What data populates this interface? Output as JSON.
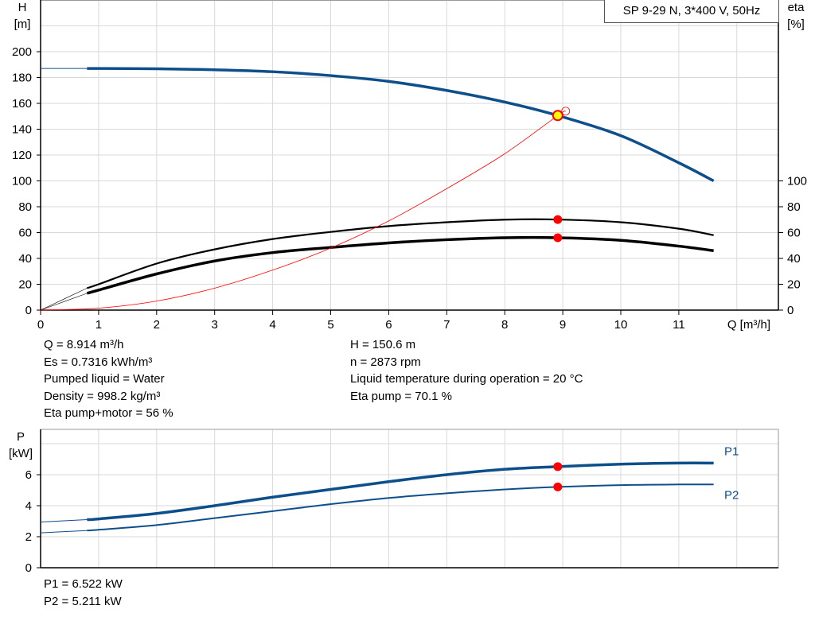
{
  "title": "SP 9-29 N, 3*400 V, 50Hz",
  "colors": {
    "head": "#0d4f8b",
    "eta": "#000000",
    "system": "#ff0000",
    "power": "#0d4f8b",
    "duty_point": "#ff0000",
    "duty_fill": "#ffff00",
    "grid": "#d9d9d9"
  },
  "info_left": [
    "Q = 8.914 m³/h",
    "Es = 0.7316 kWh/m³",
    "Pumped liquid = Water",
    "Density = 998.2 kg/m³",
    "Eta pump+motor = 56 %"
  ],
  "info_right": [
    "H = 150.6 m",
    "n = 2873 rpm",
    "Liquid temperature during operation = 20 °C",
    "Eta pump = 70.1 %"
  ],
  "power_info": [
    "P1 = 6.522 kW",
    "P2 = 5.211 kW"
  ],
  "chart_data": [
    {
      "type": "line",
      "xlabel": "Q [m³/h]",
      "ylabel": "H\n[m]",
      "y2label": "eta\n[%]",
      "ylabel_lines": [
        "H",
        "[m]"
      ],
      "y2label_lines": [
        "eta",
        "[%]"
      ],
      "xlim": [
        0,
        12.7
      ],
      "ylim": [
        0,
        240
      ],
      "y2lim": [
        0,
        240
      ],
      "xticks": [
        0,
        1,
        2,
        3,
        4,
        5,
        6,
        7,
        8,
        9,
        10,
        11
      ],
      "yticks": [
        0,
        20,
        40,
        60,
        80,
        100,
        120,
        140,
        160,
        180,
        200
      ],
      "y2ticks": [
        0,
        20,
        40,
        60,
        80,
        100
      ],
      "grid": true,
      "duty_point": {
        "Q": 8.914,
        "H": 150.6,
        "eta_pump": 70.1,
        "eta_total": 56
      },
      "series": [
        {
          "key": "H",
          "axis": "left",
          "x": [
            0.8,
            2,
            3,
            4,
            5,
            6,
            7,
            8,
            8.914,
            10,
            11,
            11.6
          ],
          "y": [
            187,
            186.8,
            186,
            184.5,
            181.5,
            177,
            170,
            161,
            150.6,
            135,
            114,
            100
          ],
          "extension": {
            "x": [
              0,
              0.8
            ],
            "y": [
              187,
              187
            ]
          }
        },
        {
          "key": "eta_pump",
          "axis": "right",
          "x": [
            0.8,
            1,
            2,
            3,
            4,
            5,
            6,
            7,
            8,
            8.914,
            10,
            11,
            11.6
          ],
          "y": [
            17,
            20,
            36,
            47,
            55,
            60.5,
            65,
            68,
            70,
            70.1,
            68,
            63,
            58
          ],
          "extension": {
            "x": [
              0,
              0.8
            ],
            "y": [
              0,
              17
            ]
          }
        },
        {
          "key": "eta_total",
          "axis": "right",
          "x": [
            0.8,
            1,
            2,
            3,
            4,
            5,
            6,
            7,
            8,
            8.914,
            10,
            11,
            11.6
          ],
          "y": [
            13,
            15.5,
            28,
            38,
            44.5,
            48.5,
            52,
            54.5,
            56,
            56,
            54,
            49.5,
            46
          ],
          "extension": {
            "x": [
              0,
              0.8
            ],
            "y": [
              0,
              13
            ]
          }
        },
        {
          "key": "system",
          "axis": "left",
          "x": [
            0,
            1,
            2,
            3,
            4,
            5,
            6,
            7,
            8,
            8.914,
            9.05
          ],
          "y": [
            0,
            1.5,
            7,
            17,
            31,
            48,
            69,
            94,
            121,
            150.6,
            154
          ]
        }
      ]
    },
    {
      "type": "line",
      "ylabel_lines": [
        "P",
        "[kW]"
      ],
      "xlim": [
        0,
        12.7
      ],
      "ylim": [
        0,
        9.5
      ],
      "yticks": [
        0,
        2,
        4,
        6
      ],
      "grid": true,
      "duty_point": {
        "Q": 8.914,
        "P1": 6.522,
        "P2": 5.211
      },
      "series": [
        {
          "name": "P1",
          "x": [
            0.8,
            1,
            2,
            3,
            4,
            5,
            6,
            7,
            8,
            8.914,
            10,
            11,
            11.6
          ],
          "y": [
            3.1,
            3.15,
            3.5,
            4.0,
            4.55,
            5.05,
            5.55,
            6.0,
            6.35,
            6.522,
            6.68,
            6.75,
            6.75
          ],
          "extension": {
            "x": [
              0,
              0.8
            ],
            "y": [
              2.95,
              3.1
            ]
          }
        },
        {
          "name": "P2",
          "x": [
            0.8,
            1,
            2,
            3,
            4,
            5,
            6,
            7,
            8,
            8.914,
            10,
            11,
            11.6
          ],
          "y": [
            2.4,
            2.45,
            2.75,
            3.2,
            3.65,
            4.1,
            4.5,
            4.8,
            5.05,
            5.211,
            5.33,
            5.37,
            5.37
          ],
          "extension": {
            "x": [
              0,
              0.8
            ],
            "y": [
              2.25,
              2.4
            ]
          }
        }
      ]
    }
  ]
}
